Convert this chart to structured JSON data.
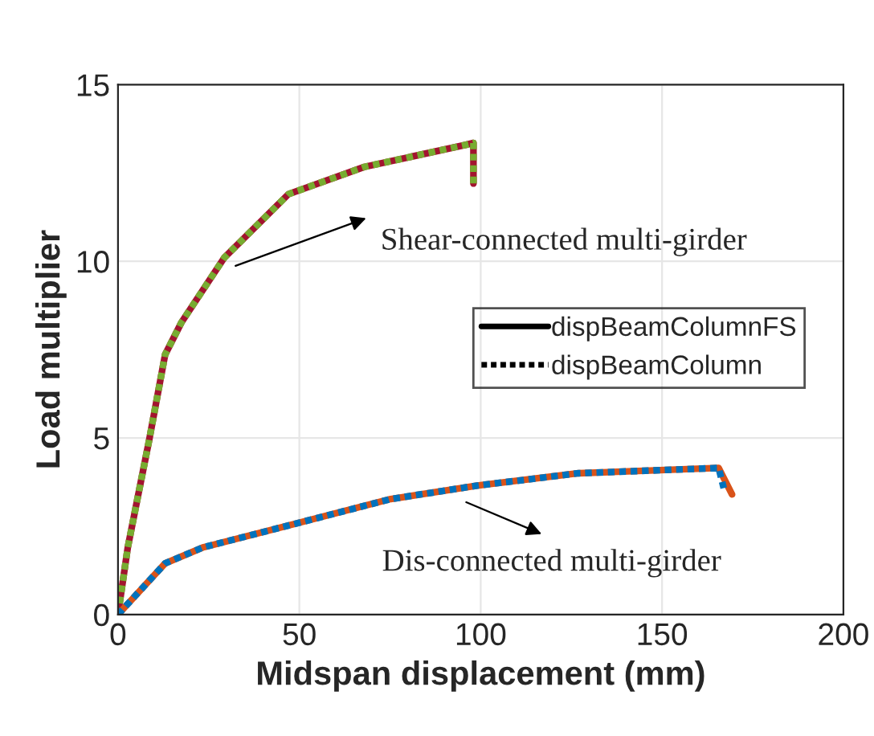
{
  "chart_data": {
    "type": "line",
    "xlabel": "Midspan displacement (mm)",
    "ylabel": "Load multiplier",
    "xlim": [
      0,
      200
    ],
    "ylim": [
      0,
      15
    ],
    "xticks": [
      0,
      50,
      100,
      150,
      200
    ],
    "yticks": [
      0,
      5,
      10,
      15
    ],
    "grid": true,
    "legend": "right",
    "marker": "none",
    "series": [
      {
        "name": "dispBeamColumnFS",
        "color": "#a2142f",
        "line_style": "solid",
        "x": [
          0,
          2.7,
          5.6,
          8.6,
          13,
          17.5,
          29.3,
          47,
          67.9,
          96,
          98,
          98
        ],
        "values": [
          0,
          1.9,
          3.4,
          4.94,
          7.36,
          8.27,
          10.1,
          11.9,
          12.67,
          13.3,
          13.35,
          12.2
        ]
      },
      {
        "name": "dispBeamColumn",
        "color": "#77ac30",
        "line_style": "dotted",
        "x": [
          0,
          2.7,
          5.6,
          8.6,
          13,
          17.5,
          29.3,
          47,
          67.9,
          96,
          98,
          98
        ],
        "values": [
          0,
          1.9,
          3.4,
          4.94,
          7.36,
          8.27,
          10.1,
          11.9,
          12.67,
          13.3,
          13.35,
          12.2
        ]
      },
      {
        "color": "#d95319",
        "line_style": "solid",
        "x": [
          0,
          13,
          23.4,
          50,
          75.2,
          99,
          127,
          165.6,
          169.3
        ],
        "values": [
          0,
          1.45,
          1.9,
          2.6,
          3.27,
          3.65,
          4.0,
          4.15,
          3.4
        ]
      },
      {
        "color": "#0072bd",
        "line_style": "dotted",
        "x": [
          0,
          13,
          23.4,
          50,
          75.2,
          99,
          127,
          165.6,
          167
        ],
        "values": [
          0,
          1.45,
          1.9,
          2.6,
          3.27,
          3.65,
          4.0,
          4.15,
          3.58
        ]
      }
    ],
    "annotations": [
      "Shear-connected multi-girder",
      "Dis-connected multi-girder"
    ]
  }
}
